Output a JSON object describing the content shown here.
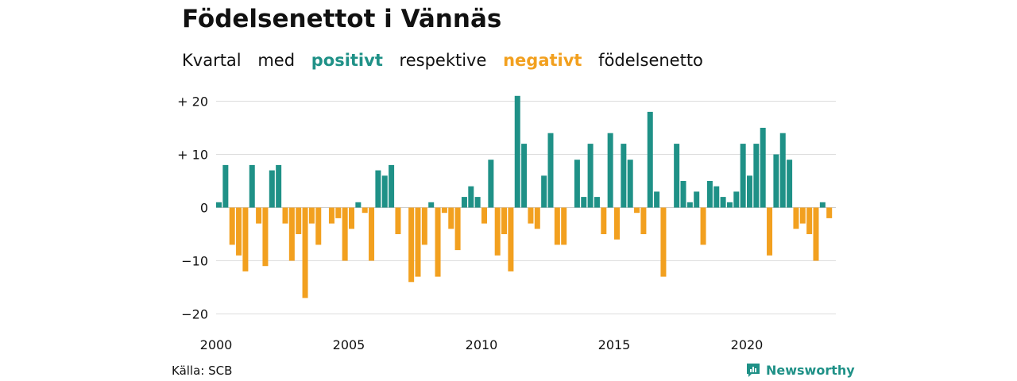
{
  "title": "Födelsenettot i Vännäs",
  "subtitle": {
    "w1": "Kvartal",
    "w2": "med",
    "positive": "positivt",
    "w3": "respektive",
    "negative": "negativt",
    "w4": "födelsenetto"
  },
  "colors": {
    "positive": "#1f9187",
    "negative": "#f2a01f",
    "grid": "#dddddd"
  },
  "source": "Källa: SCB",
  "brand": {
    "name": "Newsworthy",
    "icon": "newsworthy-logo-icon"
  },
  "chart_data": {
    "type": "bar",
    "title": "Födelsenettot i Vännäs",
    "xlabel": "",
    "ylabel": "",
    "ylim": [
      -22,
      22
    ],
    "yticks": [
      20,
      10,
      0,
      -10,
      -20
    ],
    "ytick_labels": [
      "+ 20",
      "+ 10",
      "0",
      "−10",
      "−20"
    ],
    "xticks": [
      2000,
      2005,
      2010,
      2015,
      2020
    ],
    "xtick_labels": [
      "2000",
      "2005",
      "2010",
      "2015",
      "2020"
    ],
    "grid": true,
    "start_quarter": "2000Q1",
    "values": [
      1,
      8,
      -7,
      -9,
      -12,
      8,
      -3,
      -11,
      7,
      8,
      -3,
      -10,
      -5,
      -17,
      -3,
      -7,
      0,
      -3,
      -2,
      -10,
      -4,
      1,
      -1,
      -10,
      7,
      6,
      8,
      -5,
      0,
      -14,
      -13,
      -7,
      1,
      -13,
      -1,
      -4,
      -8,
      2,
      4,
      2,
      -3,
      9,
      -9,
      -5,
      -12,
      21,
      12,
      -3,
      -4,
      6,
      14,
      -7,
      -7,
      0,
      9,
      2,
      12,
      2,
      -5,
      14,
      -6,
      12,
      9,
      -1,
      -5,
      18,
      3,
      -13,
      0,
      12,
      5,
      1,
      3,
      -7,
      5,
      4,
      2,
      1,
      3,
      12,
      6,
      12,
      15,
      -9,
      10,
      14,
      9,
      -4,
      -3,
      -5,
      -10,
      1,
      -2
    ]
  }
}
